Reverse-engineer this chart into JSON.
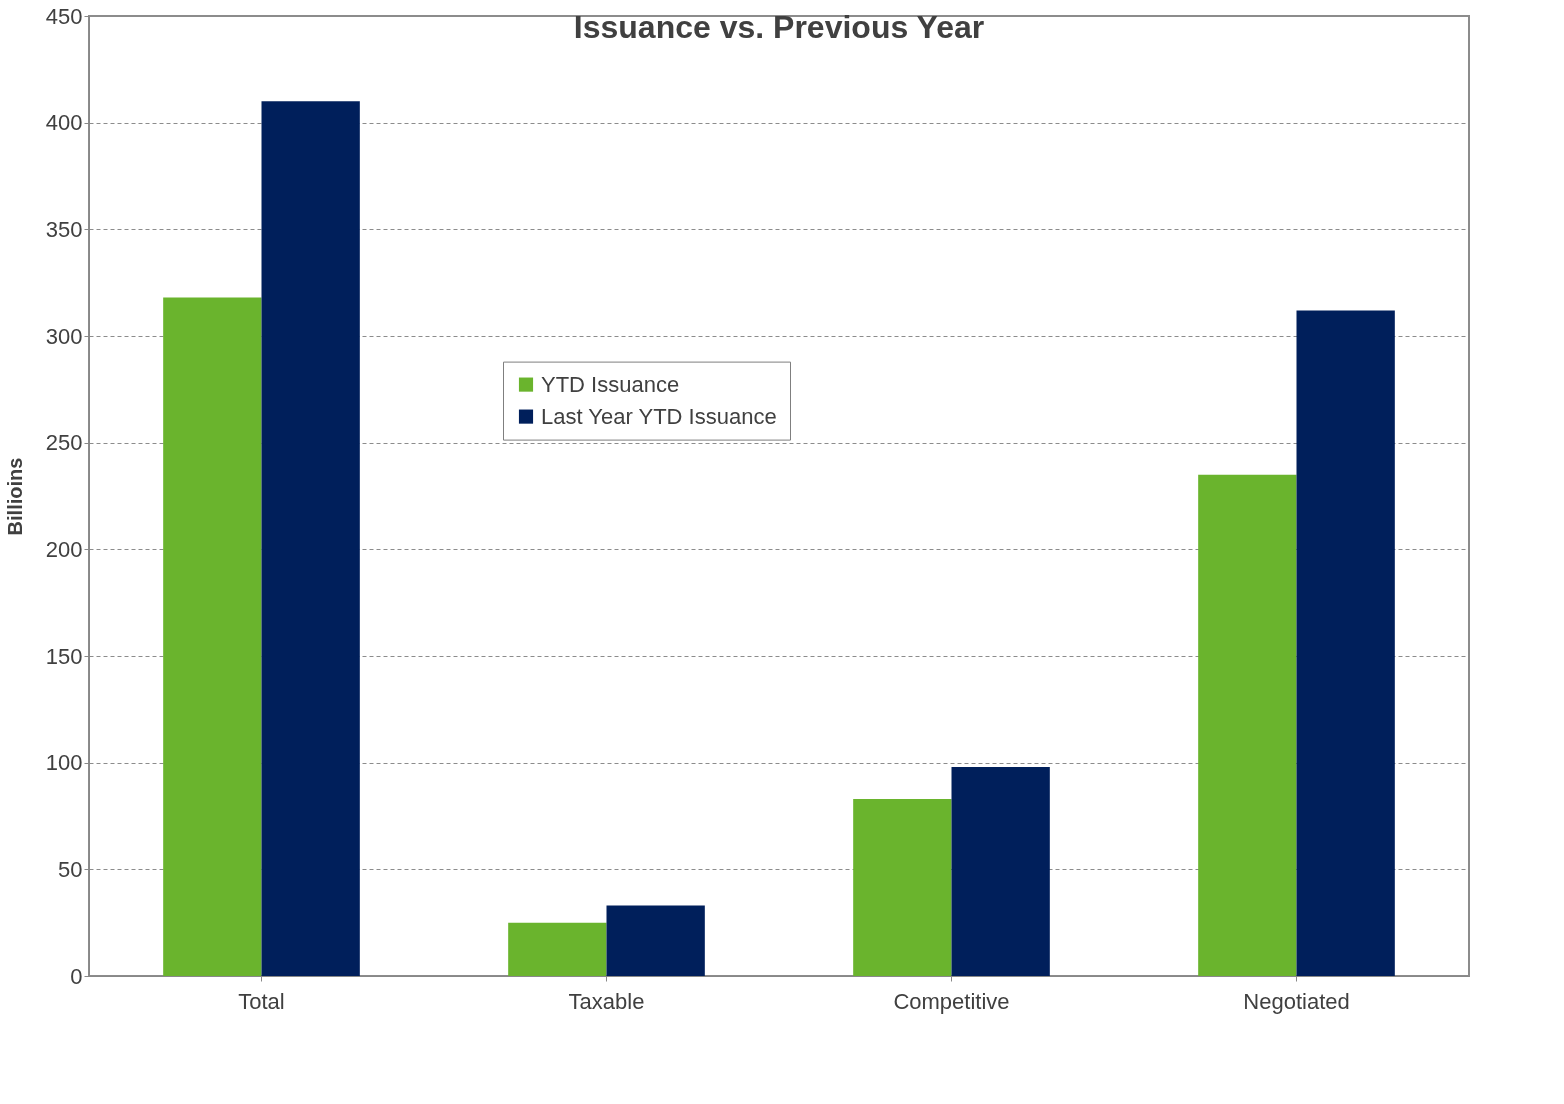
{
  "chart_data": {
    "type": "bar",
    "title": "Issuance vs. Previous Year",
    "ylabel": "Billioins",
    "categories": [
      "Total",
      "Taxable",
      "Competitive",
      "Negotiated"
    ],
    "series": [
      {
        "name": "YTD Issuance",
        "color": "#6ab42d",
        "values": [
          318,
          25,
          83,
          235
        ]
      },
      {
        "name": "Last Year YTD Issuance",
        "color": "#001f5b",
        "values": [
          410,
          33,
          98,
          312
        ]
      }
    ],
    "ylim": [
      0,
      450
    ],
    "yticks": [
      0,
      50,
      100,
      150,
      200,
      250,
      300,
      350,
      400,
      450
    ],
    "grid": "y",
    "legend": "top left"
  }
}
